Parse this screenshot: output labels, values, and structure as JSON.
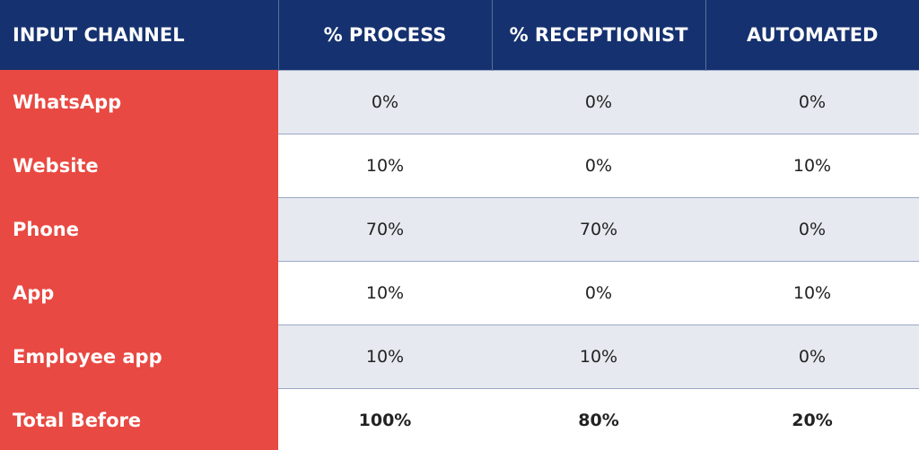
{
  "table": {
    "header": [
      "INPUT CHANNEL",
      "% PROCESS",
      "% RECEPTIONIST",
      "AUTOMATED"
    ],
    "rows": [
      [
        "WhatsApp",
        "0%",
        "0%",
        "0%"
      ],
      [
        "Website",
        "10%",
        "0%",
        "10%"
      ],
      [
        "Phone",
        "70%",
        "70%",
        "0%"
      ],
      [
        "App",
        "10%",
        "0%",
        "10%"
      ],
      [
        "Employee app",
        "10%",
        "10%",
        "0%"
      ],
      [
        "Total Before",
        "100%",
        "80%",
        "20%"
      ]
    ]
  }
}
